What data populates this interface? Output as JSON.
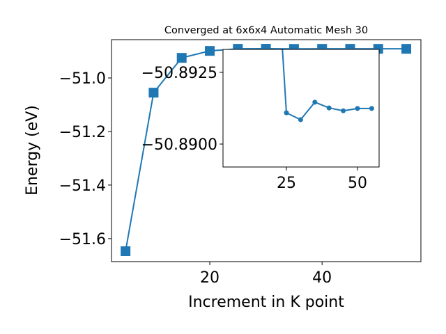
{
  "chart_data": {
    "type": "line",
    "title": "Converged at 6x6x4 Automatic Mesh 30",
    "x_label": "Increment in K point",
    "y_label": "Energy (eV)",
    "x": [
      5,
      10,
      15,
      20,
      25,
      30,
      35,
      40,
      45,
      50,
      55
    ],
    "series": [
      {
        "name": "Energy",
        "color": "#1f77b4",
        "values": [
          -51.647,
          -51.055,
          -50.925,
          -50.899,
          -50.89109,
          -50.89085,
          -50.89146,
          -50.89126,
          -50.89116,
          -50.89124,
          -50.89124
        ]
      }
    ],
    "xlim": [
      2.5,
      57.6
    ],
    "ylim": [
      -51.686,
      -50.857
    ],
    "xticks": [
      20,
      40
    ],
    "yticks": [
      {
        "value": -51.6,
        "label": "−51.6"
      },
      {
        "value": -51.4,
        "label": "−51.4"
      },
      {
        "value": -51.2,
        "label": "−51.2"
      },
      {
        "value": -51.0,
        "label": "−51.0"
      }
    ],
    "inset": {
      "xlim": [
        2.7,
        57.6
      ],
      "ylim": [
        -50.8892,
        -50.8933
      ],
      "xticks": [
        25,
        50
      ],
      "yticks": [
        {
          "value": -50.8925,
          "label": "−50.8925"
        },
        {
          "value": -50.89,
          "label": "−50.8900"
        }
      ]
    }
  }
}
